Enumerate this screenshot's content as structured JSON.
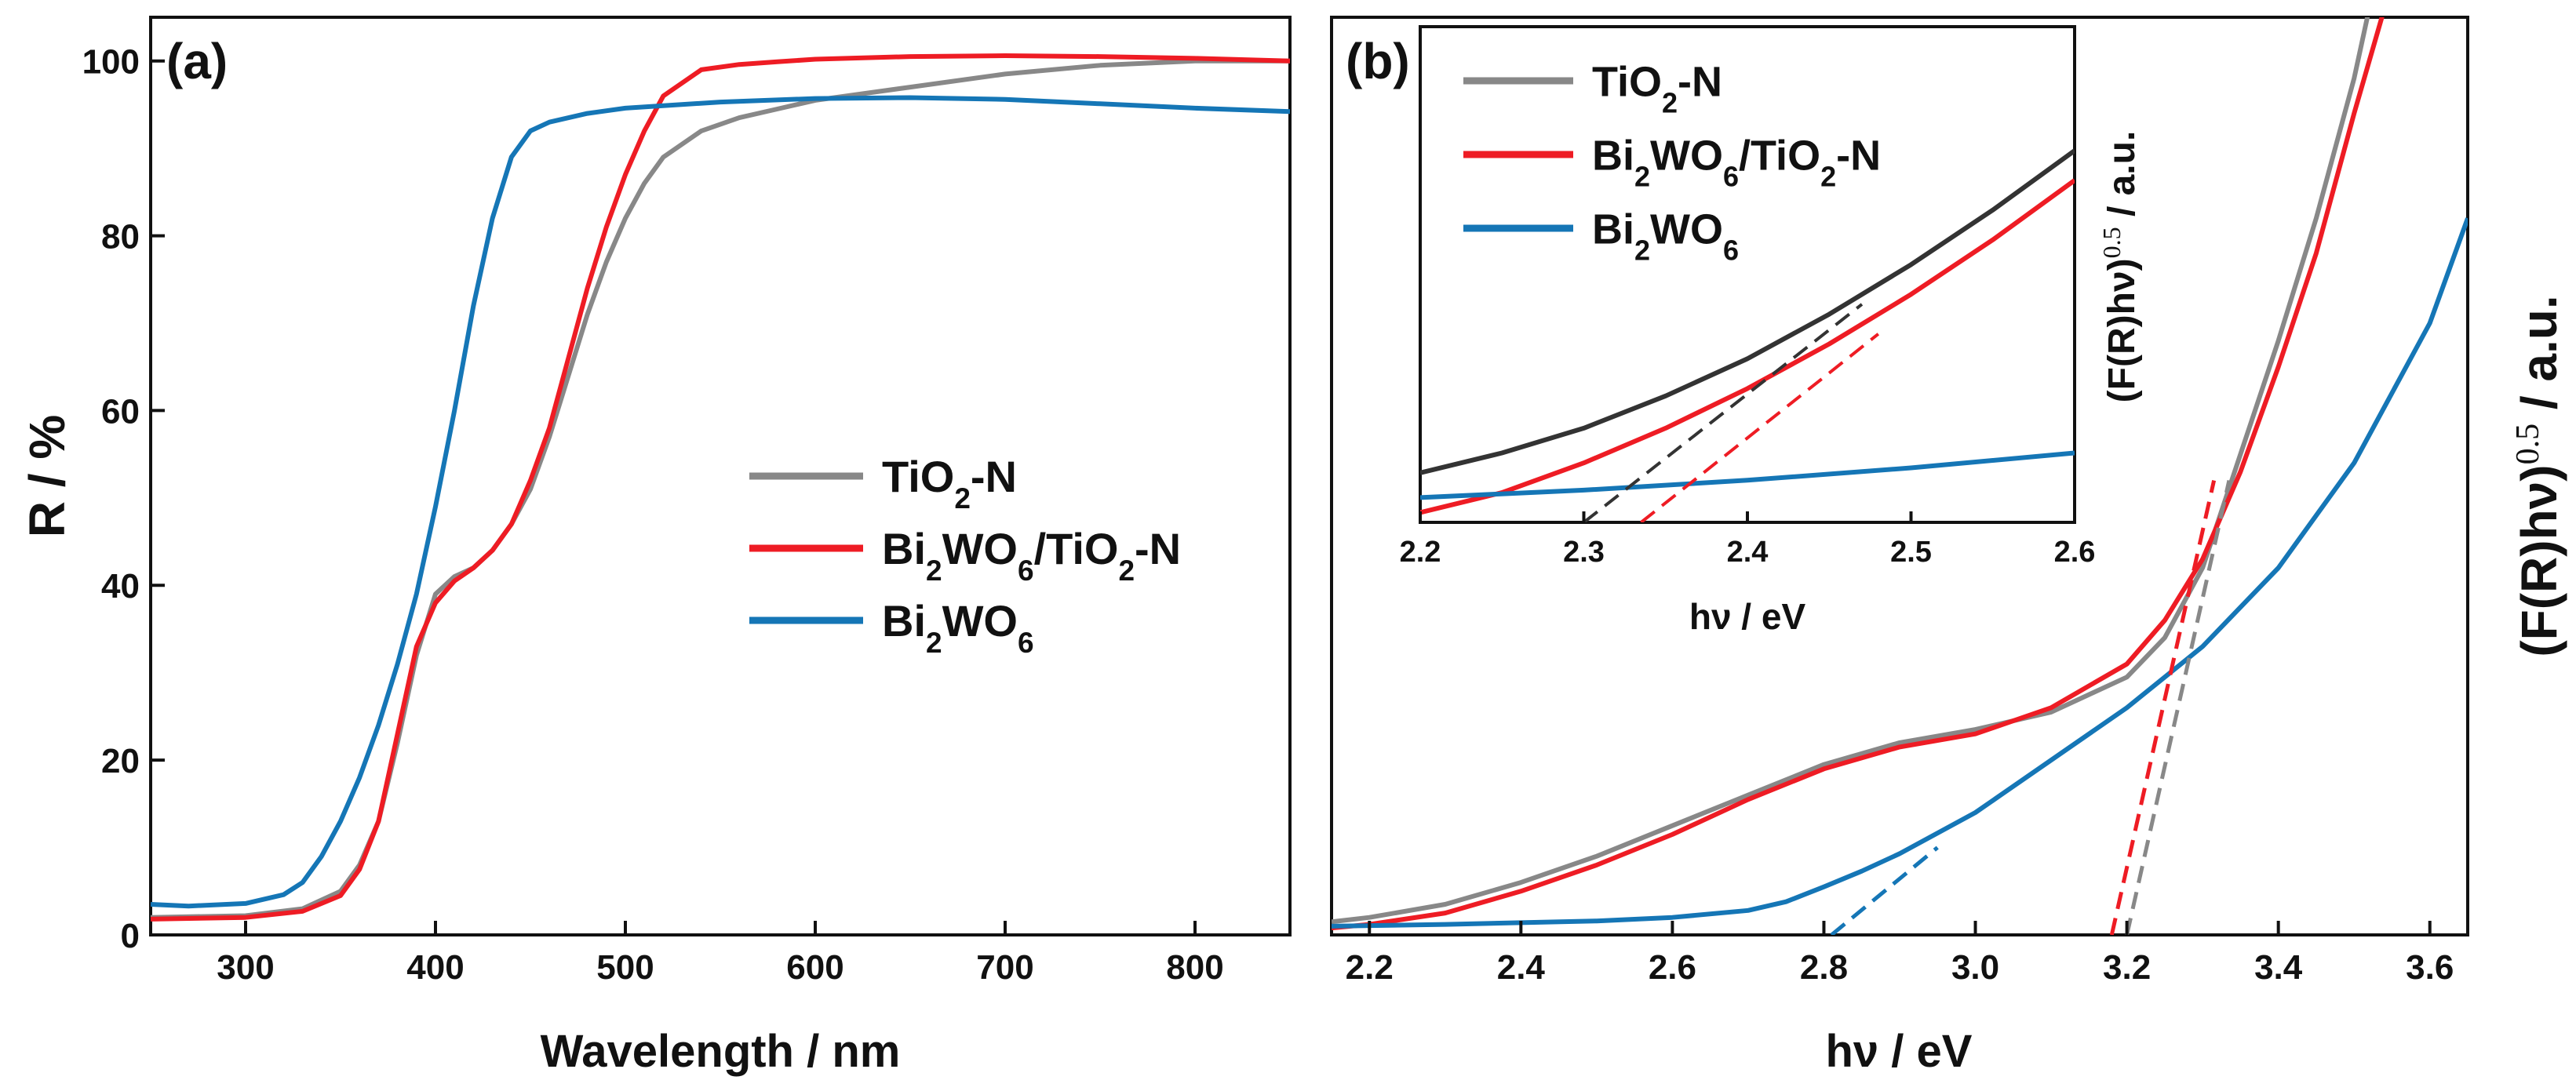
{
  "series_style": {
    "TiO2-N": {
      "color": "#888888",
      "inset_color": "#333333"
    },
    "Bi2WO6/TiO2-N": {
      "color": "#ee1c24"
    },
    "Bi2WO6": {
      "color": "#1576b6"
    }
  },
  "chart_data": [
    {
      "id": "a",
      "type": "line",
      "panel_label": "(a)",
      "xlabel": "Wavelength / nm",
      "ylabel": "R / %",
      "xlim": [
        250,
        850
      ],
      "ylim": [
        0,
        105
      ],
      "xticks": [
        "300",
        "400",
        "500",
        "600",
        "700",
        "800"
      ],
      "yticks": [
        "0",
        "20",
        "40",
        "60",
        "80",
        "100"
      ],
      "legend_location": "center-right",
      "legend": [
        {
          "key": "TiO2-N",
          "base": "TiO",
          "sub1": "2",
          "mid": "-N",
          "sub2": "",
          "tail": ""
        },
        {
          "key": "Bi2WO6/TiO2-N",
          "base": "Bi",
          "sub1": "2",
          "mid": "WO",
          "sub2": "6",
          "tail": "/TiO",
          "sub3": "2",
          "end": "-N"
        },
        {
          "key": "Bi2WO6",
          "base": "Bi",
          "sub1": "2",
          "mid": "WO",
          "sub2": "6",
          "tail": ""
        }
      ],
      "series": [
        {
          "name": "TiO2-N",
          "x": [
            250,
            300,
            330,
            350,
            360,
            370,
            380,
            390,
            400,
            410,
            420,
            430,
            440,
            450,
            460,
            470,
            480,
            490,
            500,
            510,
            520,
            540,
            560,
            580,
            600,
            650,
            700,
            750,
            800,
            850
          ],
          "y": [
            2,
            2.2,
            3,
            5,
            8,
            13,
            22,
            32,
            39,
            41,
            42,
            44,
            47,
            51,
            57,
            64,
            71,
            77,
            82,
            86,
            89,
            92,
            93.5,
            94.5,
            95.5,
            97,
            98.5,
            99.5,
            100,
            100
          ]
        },
        {
          "name": "Bi2WO6/TiO2-N",
          "x": [
            250,
            300,
            330,
            350,
            360,
            370,
            380,
            390,
            400,
            410,
            420,
            430,
            440,
            450,
            460,
            470,
            480,
            490,
            500,
            510,
            520,
            540,
            560,
            580,
            600,
            650,
            700,
            750,
            800,
            850
          ],
          "y": [
            1.8,
            2,
            2.7,
            4.5,
            7.5,
            13,
            23,
            33,
            38,
            40.5,
            42,
            44,
            47,
            52,
            58,
            66,
            74,
            81,
            87,
            92,
            96,
            99,
            99.6,
            99.9,
            100.2,
            100.5,
            100.6,
            100.5,
            100.3,
            100
          ]
        },
        {
          "name": "Bi2WO6",
          "x": [
            250,
            270,
            300,
            320,
            330,
            340,
            350,
            360,
            370,
            380,
            390,
            400,
            410,
            420,
            430,
            440,
            450,
            460,
            480,
            500,
            550,
            600,
            650,
            700,
            750,
            800,
            850
          ],
          "y": [
            3.5,
            3.3,
            3.6,
            4.6,
            6,
            9,
            13,
            18,
            24,
            31,
            39,
            49,
            60,
            72,
            82,
            89,
            92,
            93,
            94,
            94.6,
            95.3,
            95.7,
            95.8,
            95.6,
            95.1,
            94.6,
            94.2
          ]
        }
      ]
    },
    {
      "id": "b",
      "type": "line",
      "panel_label": "(b)",
      "xlabel": "hν / eV",
      "ylabel": "(F(R)hν)^0.5 / a.u.",
      "xlim": [
        2.15,
        3.65
      ],
      "ylim": [
        0,
        105
      ],
      "xticks": [
        "2.2",
        "2.4",
        "2.6",
        "2.8",
        "3.0",
        "3.2",
        "3.4",
        "3.6"
      ],
      "series": [
        {
          "name": "TiO2-N",
          "x": [
            2.15,
            2.2,
            2.3,
            2.4,
            2.5,
            2.6,
            2.7,
            2.8,
            2.9,
            3.0,
            3.1,
            3.2,
            3.25,
            3.3,
            3.35,
            3.4,
            3.45,
            3.5,
            3.52
          ],
          "y": [
            1.5,
            2,
            3.5,
            6,
            9,
            12.5,
            16,
            19.5,
            22,
            23.5,
            25.5,
            29.5,
            34,
            42,
            55,
            68,
            82,
            98,
            106
          ]
        },
        {
          "name": "Bi2WO6/TiO2-N",
          "x": [
            2.15,
            2.2,
            2.3,
            2.4,
            2.5,
            2.6,
            2.7,
            2.8,
            2.9,
            3.0,
            3.1,
            3.2,
            3.25,
            3.3,
            3.35,
            3.4,
            3.45,
            3.5,
            3.54
          ],
          "y": [
            0.8,
            1.2,
            2.5,
            5,
            8,
            11.5,
            15.5,
            19,
            21.5,
            23,
            26,
            31,
            36,
            43,
            53,
            65,
            78,
            94,
            106
          ]
        },
        {
          "name": "Bi2WO6",
          "x": [
            2.15,
            2.3,
            2.5,
            2.6,
            2.7,
            2.75,
            2.8,
            2.85,
            2.9,
            3.0,
            3.1,
            3.2,
            3.3,
            3.4,
            3.5,
            3.6,
            3.65
          ],
          "y": [
            1,
            1.2,
            1.6,
            2,
            2.8,
            3.8,
            5.5,
            7.3,
            9.3,
            14,
            20,
            26,
            33,
            42,
            54,
            70,
            82
          ]
        }
      ],
      "tangents": [
        {
          "name": "TiO2-N",
          "x": [
            3.2,
            3.335
          ],
          "y": [
            0,
            52
          ]
        },
        {
          "name": "Bi2WO6/TiO2-N",
          "x": [
            3.18,
            3.315
          ],
          "y": [
            0,
            52
          ]
        },
        {
          "name": "Bi2WO6",
          "x": [
            2.81,
            2.95
          ],
          "y": [
            0,
            10
          ]
        }
      ],
      "inset": {
        "xlabel": "hν / eV",
        "ylabel": "(F(R)hν)^0.5 / a.u.",
        "xlim": [
          2.2,
          2.6
        ],
        "ylim": [
          0,
          100
        ],
        "xticks": [
          "2.2",
          "2.3",
          "2.4",
          "2.5",
          "2.6"
        ],
        "legend": [
          {
            "key": "TiO2-N",
            "base": "TiO",
            "sub1": "2",
            "mid": "-N",
            "sub2": "",
            "tail": ""
          },
          {
            "key": "Bi2WO6/TiO2-N",
            "base": "Bi",
            "sub1": "2",
            "mid": "WO",
            "sub2": "6",
            "tail": "/TiO",
            "sub3": "2",
            "end": "-N"
          },
          {
            "key": "Bi2WO6",
            "base": "Bi",
            "sub1": "2",
            "mid": "WO",
            "sub2": "6",
            "tail": ""
          }
        ],
        "series": [
          {
            "name": "TiO2-N",
            "x": [
              2.2,
              2.25,
              2.3,
              2.35,
              2.4,
              2.45,
              2.5,
              2.55,
              2.6
            ],
            "y": [
              10,
              14,
              19,
              25.5,
              33,
              42,
              52,
              63,
              75
            ]
          },
          {
            "name": "Bi2WO6/TiO2-N",
            "x": [
              2.2,
              2.25,
              2.3,
              2.35,
              2.4,
              2.45,
              2.5,
              2.55,
              2.6
            ],
            "y": [
              2,
              6,
              12,
              19,
              27,
              36,
              46,
              57,
              69
            ]
          },
          {
            "name": "Bi2WO6",
            "x": [
              2.2,
              2.3,
              2.4,
              2.5,
              2.6
            ],
            "y": [
              5,
              6.5,
              8.5,
              11,
              14
            ]
          }
        ],
        "tangents": [
          {
            "name": "TiO2-N",
            "x": [
              2.3,
              2.47
            ],
            "y": [
              0,
              44
            ]
          },
          {
            "name": "Bi2WO6/TiO2-N",
            "x": [
              2.335,
              2.48
            ],
            "y": [
              0,
              38
            ]
          }
        ]
      }
    }
  ]
}
